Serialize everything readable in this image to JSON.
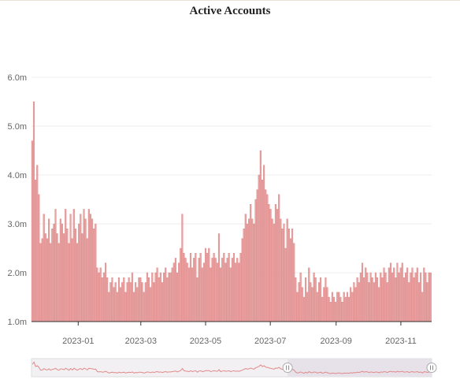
{
  "chart_data": {
    "type": "bar",
    "title": "Active Accounts",
    "xlabel": "",
    "ylabel": "",
    "ylim": [
      1.0,
      6.0
    ],
    "y_ticks": [
      "1.0m",
      "2.0m",
      "3.0m",
      "4.0m",
      "5.0m",
      "6.0m"
    ],
    "y_tick_values": [
      1.0,
      2.0,
      3.0,
      4.0,
      5.0,
      6.0
    ],
    "x_ticks": [
      "2023-01",
      "2023-03",
      "2023-05",
      "2023-07",
      "2023-09",
      "2023-11"
    ],
    "x_tick_dates": [
      "2023-01-01",
      "2023-03-01",
      "2023-05-01",
      "2023-07-01",
      "2023-09-01",
      "2023-11-01"
    ],
    "x_range": [
      "2022-11-18",
      "2023-11-30"
    ],
    "unit": "m",
    "bar_color": "#e8a3a3",
    "bar_edge_color": "#d66f6f",
    "grid": true,
    "legend": "none",
    "series": [
      {
        "values": [
          4.7,
          5.5,
          3.9,
          4.2,
          3.6,
          2.6,
          2.7,
          3.2,
          2.8,
          2.7,
          3.1,
          2.6,
          2.9,
          3.0,
          3.3,
          2.8,
          2.6,
          3.1,
          3.0,
          2.8,
          3.3,
          2.9,
          2.6,
          3.2,
          2.7,
          3.3,
          2.9,
          2.6,
          3.0,
          3.2,
          2.8,
          3.3,
          3.1,
          2.7,
          3.3,
          3.2,
          3.1,
          2.9,
          3.0,
          2.1,
          2.0,
          2.1,
          1.9,
          2.0,
          2.2,
          1.9,
          1.6,
          1.8,
          1.9,
          1.7,
          1.8,
          1.6,
          1.9,
          1.7,
          1.8,
          1.9,
          1.6,
          1.8,
          1.9,
          1.8,
          2.0,
          1.6,
          1.8,
          1.7,
          1.9,
          1.9,
          1.8,
          1.6,
          1.8,
          2.0,
          1.9,
          1.7,
          2.0,
          1.8,
          2.0,
          2.1,
          1.9,
          2.0,
          1.8,
          2.0,
          2.1,
          1.9,
          2.0,
          2.0,
          2.1,
          2.2,
          2.3,
          2.0,
          2.2,
          2.5,
          3.2,
          2.4,
          2.3,
          2.2,
          2.1,
          2.4,
          2.1,
          2.3,
          2.4,
          1.9,
          2.3,
          2.4,
          2.1,
          2.2,
          2.5,
          2.4,
          2.5,
          2.1,
          2.3,
          2.4,
          2.3,
          2.2,
          2.8,
          2.1,
          2.3,
          2.4,
          2.2,
          2.3,
          2.4,
          2.1,
          2.3,
          2.4,
          2.2,
          2.3,
          2.2,
          2.4,
          2.7,
          2.9,
          3.2,
          3.0,
          3.1,
          3.4,
          3.1,
          3.0,
          3.5,
          3.7,
          4.0,
          4.5,
          3.9,
          4.2,
          3.7,
          3.6,
          3.4,
          3.3,
          3.1,
          3.0,
          3.4,
          3.3,
          3.6,
          3.1,
          2.9,
          3.0,
          2.5,
          3.1,
          2.9,
          2.7,
          2.9,
          2.6,
          1.9,
          1.6,
          1.8,
          2.0,
          1.7,
          1.5,
          1.9,
          1.6,
          2.1,
          1.8,
          1.7,
          2.0,
          1.9,
          1.6,
          1.8,
          1.9,
          1.5,
          1.7,
          1.9,
          1.7,
          1.5,
          1.4,
          1.6,
          1.5,
          1.4,
          1.6,
          1.6,
          1.5,
          1.4,
          1.6,
          1.5,
          1.6,
          1.5,
          1.7,
          1.6,
          1.8,
          1.7,
          1.9,
          1.8,
          2.0,
          2.2,
          1.9,
          2.1,
          2.0,
          1.8,
          2.0,
          1.9,
          1.8,
          2.0,
          1.9,
          1.7,
          2.0,
          1.9,
          2.1,
          2.0,
          1.8,
          2.1,
          2.2,
          2.0,
          2.1,
          1.9,
          2.2,
          2.0,
          2.1,
          2.2,
          1.9,
          2.0,
          2.1,
          1.8,
          2.0,
          2.1,
          1.9,
          2.0,
          2.1,
          1.8,
          2.0,
          1.6,
          2.1,
          2.0,
          1.8,
          2.0,
          2.0
        ]
      }
    ]
  },
  "zoom_slider": {
    "start_handle_icon": "drag-handle-icon",
    "end_handle_icon": "drag-handle-icon"
  }
}
